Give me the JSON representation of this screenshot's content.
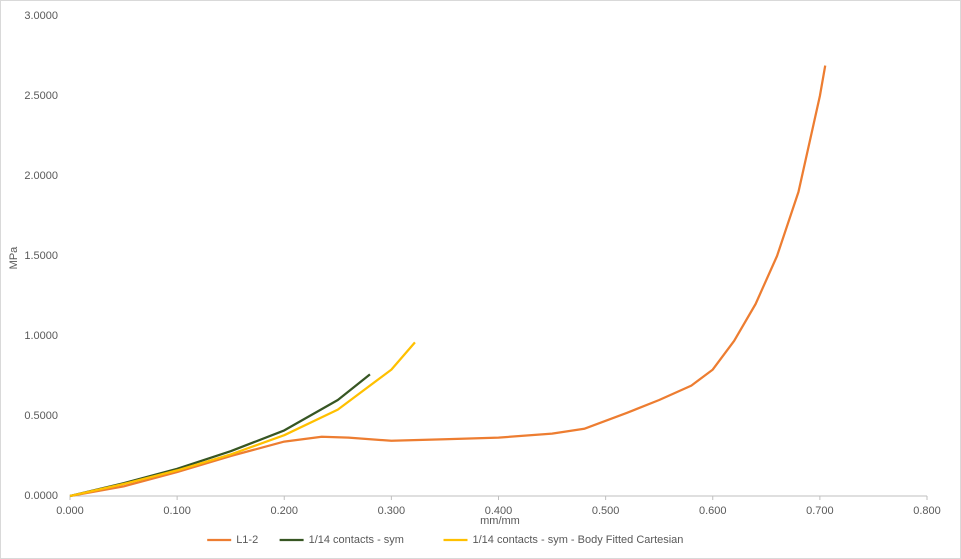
{
  "chart_data": {
    "type": "line",
    "x_label": "mm/mm",
    "y_label": "MPa",
    "xlim": [
      0,
      0.8
    ],
    "ylim": [
      0,
      3
    ],
    "xticks": [
      {
        "value": 0,
        "label": "0.000"
      },
      {
        "value": 0.1,
        "label": "0.100"
      },
      {
        "value": 0.2,
        "label": "0.200"
      },
      {
        "value": 0.3,
        "label": "0.300"
      },
      {
        "value": 0.4,
        "label": "0.400"
      },
      {
        "value": 0.5,
        "label": "0.500"
      },
      {
        "value": 0.6,
        "label": "0.600"
      },
      {
        "value": 0.7,
        "label": "0.700"
      },
      {
        "value": 0.8,
        "label": "0.800"
      }
    ],
    "yticks": [
      {
        "value": 0,
        "label": "0.0000"
      },
      {
        "value": 0.5,
        "label": "0.5000"
      },
      {
        "value": 1,
        "label": "1.0000"
      },
      {
        "value": 1.5,
        "label": "1.5000"
      },
      {
        "value": 2,
        "label": "2.0000"
      },
      {
        "value": 2.5,
        "label": "2.5000"
      },
      {
        "value": 3,
        "label": "3.0000"
      }
    ],
    "grid": false,
    "legend": "bottom",
    "series": [
      {
        "name": "L1-2",
        "color": "#ed7d31",
        "x": [
          0,
          0.05,
          0.1,
          0.15,
          0.2,
          0.235,
          0.26,
          0.3,
          0.35,
          0.4,
          0.45,
          0.48,
          0.52,
          0.55,
          0.58,
          0.6,
          0.62,
          0.64,
          0.66,
          0.68,
          0.7,
          0.705
        ],
        "values": [
          0,
          0.06,
          0.15,
          0.25,
          0.34,
          0.37,
          0.365,
          0.345,
          0.355,
          0.365,
          0.39,
          0.42,
          0.52,
          0.6,
          0.69,
          0.79,
          0.97,
          1.2,
          1.5,
          1.9,
          2.5,
          2.69
        ]
      },
      {
        "name": "1/14 contacts - sym",
        "color": "#375623",
        "x": [
          0,
          0.05,
          0.1,
          0.15,
          0.2,
          0.25,
          0.28
        ],
        "values": [
          0,
          0.08,
          0.17,
          0.28,
          0.41,
          0.6,
          0.76
        ]
      },
      {
        "name": "1/14 contacts - sym - Body Fitted Cartesian",
        "color": "#ffc000",
        "x": [
          0,
          0.05,
          0.1,
          0.15,
          0.2,
          0.25,
          0.3,
          0.322
        ],
        "values": [
          0,
          0.075,
          0.16,
          0.26,
          0.38,
          0.54,
          0.79,
          0.96
        ]
      }
    ]
  }
}
